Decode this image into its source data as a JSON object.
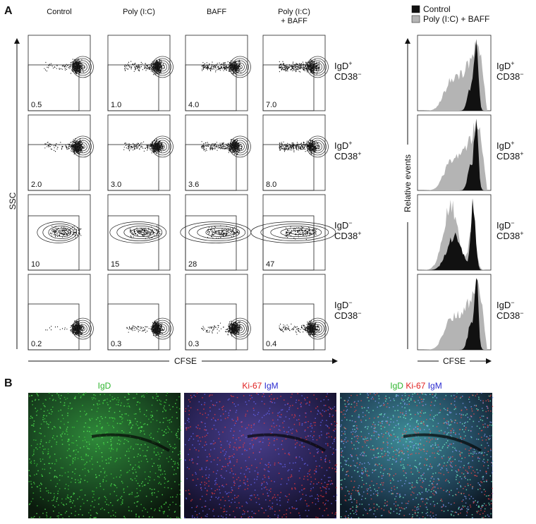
{
  "panel_a": {
    "label": "A",
    "columns": [
      [
        "Control"
      ],
      [
        "Poly (I:C)"
      ],
      [
        "BAFF"
      ],
      [
        "Poly (I:C)",
        "+ BAFF"
      ]
    ],
    "rows": [
      {
        "marker1": "IgD",
        "sign1": "+",
        "marker2": "CD38",
        "sign2": "−"
      },
      {
        "marker1": "IgD",
        "sign1": "+",
        "marker2": "CD38",
        "sign2": "+"
      },
      {
        "marker1": "IgD",
        "sign1": "−",
        "marker2": "CD38",
        "sign2": "+"
      },
      {
        "marker1": "IgD",
        "sign1": "−",
        "marker2": "CD38",
        "sign2": "−"
      }
    ],
    "gates": [
      [
        "0.5",
        "1.0",
        "4.0",
        "7.0"
      ],
      [
        "2.0",
        "3.0",
        "3.6",
        "8.0"
      ],
      [
        "10",
        "15",
        "28",
        "47"
      ],
      [
        "0.2",
        "0.3",
        "0.3",
        "0.4"
      ]
    ],
    "y_axis": "SSC",
    "x_axis": "CFSE",
    "hist_y_axis": "Relative events",
    "hist_x_axis": "CFSE",
    "legend": [
      {
        "name": "Control",
        "color": "#111111"
      },
      {
        "name": "Poly (I:C) + BAFF",
        "color": "#b4b4b4"
      }
    ]
  },
  "panel_b": {
    "label": "B",
    "images": [
      [
        {
          "text": "IgD",
          "color": "#2db52d"
        }
      ],
      [
        {
          "text": "Ki-67",
          "color": "#e02020"
        },
        {
          "text": "IgM",
          "color": "#2a2ad0"
        }
      ],
      [
        {
          "text": "IgD",
          "color": "#2db52d"
        },
        {
          "text": "Ki-67",
          "color": "#e02020"
        },
        {
          "text": "IgM",
          "color": "#2a2ad0"
        }
      ]
    ]
  }
}
